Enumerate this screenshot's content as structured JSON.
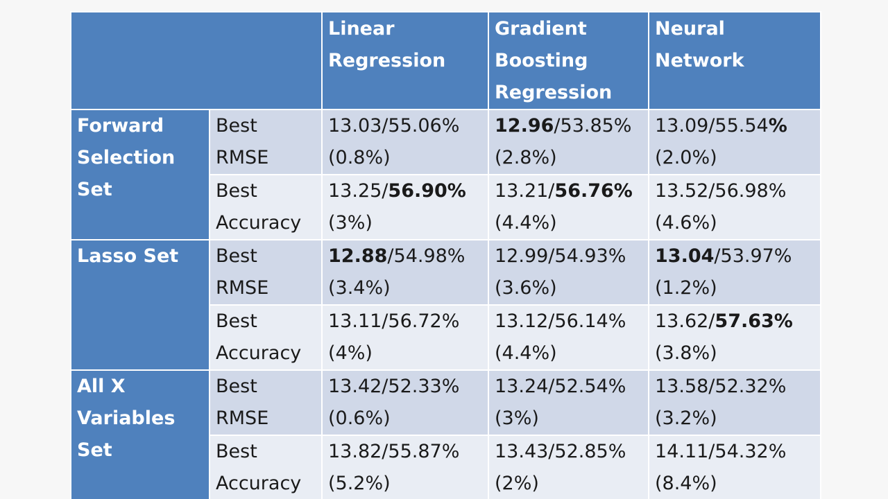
{
  "header": {
    "corner": "",
    "columns": [
      "Linear Regression",
      "Gradient Boosting Regression",
      "Neural Network"
    ],
    "column_lines": [
      [
        "Linear",
        "Regression"
      ],
      [
        "Gradient",
        "Boosting",
        "Regression"
      ],
      [
        "Neural",
        "Network"
      ]
    ]
  },
  "groups": [
    {
      "label": "Forward Selection Set",
      "label_lines": [
        "Forward",
        "Selection",
        "Set"
      ],
      "rows": [
        {
          "metric_lines": [
            "Best",
            "RMSE"
          ],
          "cells": [
            {
              "rmse": "13.03",
              "accuracy": "55.06%",
              "change": "(0.8%)",
              "bold": "none"
            },
            {
              "rmse": "12.96",
              "accuracy": "53.85%",
              "change": "(2.8%)",
              "bold": "rmse"
            },
            {
              "rmse": "13.09",
              "accuracy": "55.54%",
              "change": "(2.0%)",
              "bold": "percent-sign"
            }
          ]
        },
        {
          "metric_lines": [
            "Best",
            "Accuracy"
          ],
          "cells": [
            {
              "rmse": "13.25",
              "accuracy": "56.90%",
              "change": "(3%)",
              "bold": "accuracy"
            },
            {
              "rmse": "13.21",
              "accuracy": "56.76%",
              "change": "(4.4%)",
              "bold": "accuracy"
            },
            {
              "rmse": "13.52",
              "accuracy": "56.98%",
              "change": "(4.6%)",
              "bold": "none"
            }
          ]
        }
      ]
    },
    {
      "label": "Lasso Set",
      "label_lines": [
        "Lasso Set"
      ],
      "rows": [
        {
          "metric_lines": [
            "Best",
            "RMSE"
          ],
          "cells": [
            {
              "rmse": "12.88",
              "accuracy": "54.98%",
              "change": "(3.4%)",
              "bold": "rmse"
            },
            {
              "rmse": "12.99",
              "accuracy": "54.93%",
              "change": "(3.6%)",
              "bold": "none"
            },
            {
              "rmse": "13.04",
              "accuracy": "53.97%",
              "change": "(1.2%)",
              "bold": "rmse"
            }
          ]
        },
        {
          "metric_lines": [
            "Best",
            "Accuracy"
          ],
          "cells": [
            {
              "rmse": "13.11",
              "accuracy": "56.72%",
              "change": "(4%)",
              "bold": "none"
            },
            {
              "rmse": "13.12",
              "accuracy": "56.14%",
              "change": "(4.4%)",
              "bold": "none"
            },
            {
              "rmse": "13.62",
              "accuracy": "57.63%",
              "change": "(3.8%)",
              "bold": "accuracy"
            }
          ]
        }
      ]
    },
    {
      "label": "All X Variables Set",
      "label_lines": [
        "All X",
        "Variables",
        "Set"
      ],
      "rows": [
        {
          "metric_lines": [
            "Best",
            "RMSE"
          ],
          "cells": [
            {
              "rmse": "13.42",
              "accuracy": "52.33%",
              "change": "(0.6%)",
              "bold": "none"
            },
            {
              "rmse": "13.24",
              "accuracy": "52.54%",
              "change": "(3%)",
              "bold": "none"
            },
            {
              "rmse": "13.58",
              "accuracy": "52.32%",
              "change": "(3.2%)",
              "bold": "none"
            }
          ]
        },
        {
          "metric_lines": [
            "Best",
            "Accuracy"
          ],
          "cells": [
            {
              "rmse": "13.82",
              "accuracy": "55.87%",
              "change": "(5.2%)",
              "bold": "none"
            },
            {
              "rmse": "13.43",
              "accuracy": "52.85%",
              "change": "(2%)",
              "bold": "none"
            },
            {
              "rmse": "14.11",
              "accuracy": "54.32%",
              "change": "(8.4%)",
              "bold": "none"
            }
          ]
        }
      ]
    }
  ],
  "colors": {
    "header_bg": "#4f81bd",
    "header_text": "#ffffff",
    "row_odd_bg": "#d0d8e8",
    "row_even_bg": "#e9edf4",
    "border": "#ffffff"
  }
}
